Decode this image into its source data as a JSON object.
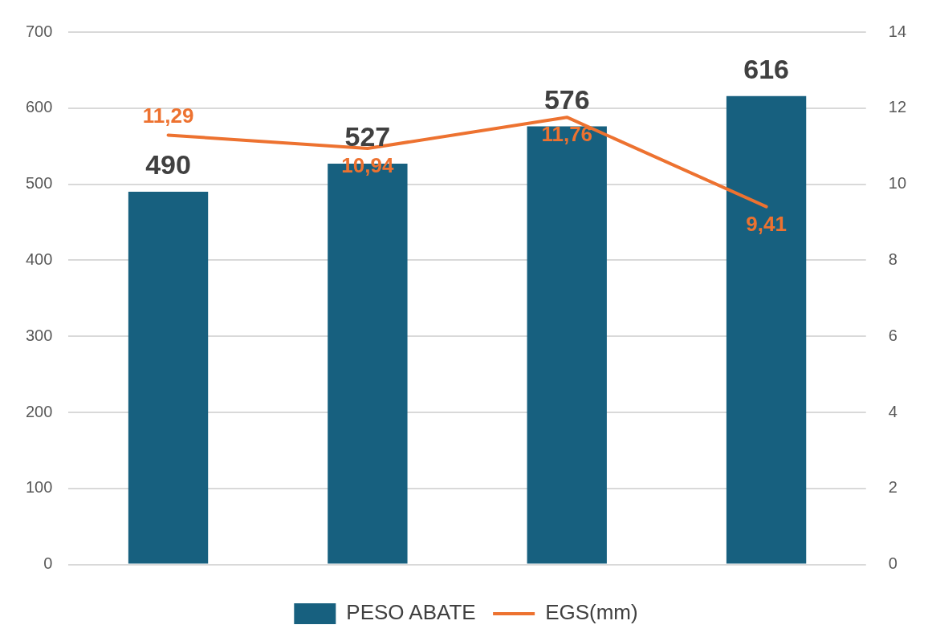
{
  "chart_data": {
    "type": "bar",
    "categories": [
      null,
      null,
      null,
      null
    ],
    "series": [
      {
        "name": "PESO ABATE",
        "color": "#17607f",
        "values": [
          490,
          527,
          576,
          616
        ],
        "value_labels": [
          "490",
          "527",
          "576",
          "616"
        ]
      },
      {
        "name": "EGS(mm)",
        "type": "line",
        "axis": "y2",
        "color": "#ed7230",
        "values": [
          11.29,
          10.94,
          11.76,
          9.41
        ],
        "value_labels": [
          "11,29",
          "10,94",
          "11,76",
          "9,41"
        ]
      }
    ],
    "ylim": [
      0,
      700
    ],
    "yticks": [
      0,
      100,
      200,
      300,
      400,
      500,
      600,
      700
    ],
    "y2lim": [
      0,
      14
    ],
    "y2ticks": [
      0,
      2,
      4,
      6,
      8,
      10,
      12,
      14
    ],
    "grid": "y",
    "legend": "bottom",
    "marker": "none",
    "line_style": "solid"
  }
}
